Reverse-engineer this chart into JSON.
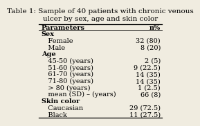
{
  "title": "Table 1: Sample of 40 patients with chronic venous\nulcer by sex, age and skin color",
  "col_headers": [
    "Parameters",
    "n%"
  ],
  "sections": [
    {
      "header": "Sex",
      "rows": [
        [
          "   Female",
          "32 (80)"
        ],
        [
          "   Male",
          "8 (20)"
        ]
      ]
    },
    {
      "header": "Age",
      "rows": [
        [
          "   45-50 (years)",
          "2 (5)"
        ],
        [
          "   51-60 (years)",
          "9 (22.5)"
        ],
        [
          "   61-70 (years)",
          "14 (35)"
        ],
        [
          "   71-80 (years)",
          "14 (35)"
        ],
        [
          "   > 80 (years)",
          "1 (2.5)"
        ],
        [
          "   mean (SD) – (years)",
          "66 (8)"
        ]
      ]
    },
    {
      "header": "Skin color",
      "rows": [
        [
          "   Caucasian",
          "29 (72.5)"
        ],
        [
          "   Black",
          "11 (27.5)"
        ]
      ]
    }
  ],
  "bg_color": "#f0ece0",
  "font_size": 7.0,
  "title_font_size": 7.5
}
